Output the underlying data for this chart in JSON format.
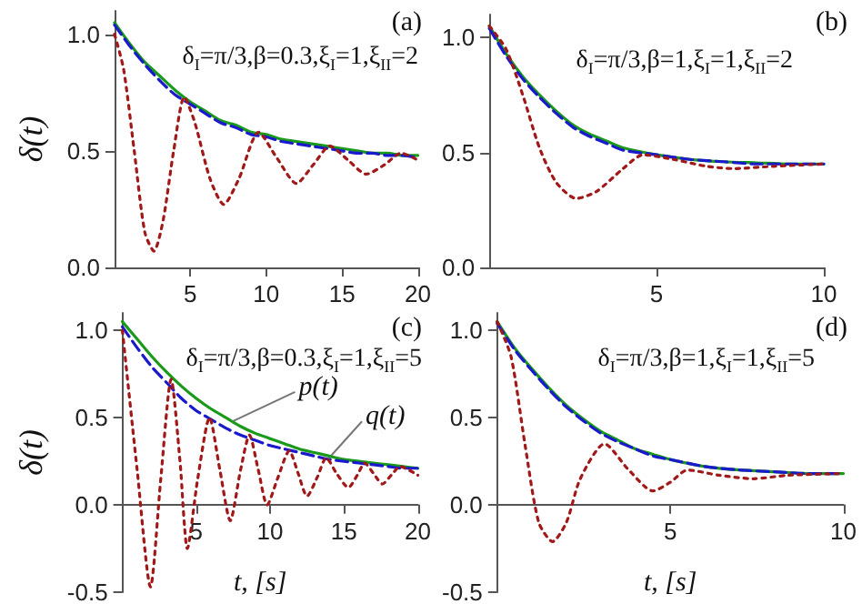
{
  "chart_data": [
    {
      "type": "line",
      "title": "(a)",
      "subtitle": "δ$_{I}$=π/3,β=0.3,ξ$_{I}$=1,ξ$_{II}$=2",
      "ylabel": "δ(t)",
      "xlim": [
        0,
        20
      ],
      "xticks": [
        5,
        10,
        15,
        20
      ],
      "ylim": [
        0,
        1.1
      ],
      "yticks": [
        {
          "value": 0,
          "label": "0.0"
        },
        {
          "value": 0.5,
          "label": "0.5"
        },
        {
          "value": 1,
          "label": "1.0"
        }
      ],
      "series": [
        {
          "color": "#1a9a1a",
          "line_style": "solid",
          "x": [
            0,
            1,
            2,
            3,
            4,
            5,
            6,
            7,
            8,
            9,
            10,
            11,
            12,
            13,
            14,
            15,
            16,
            17,
            18,
            19,
            20
          ],
          "values": [
            1.05,
            0.96,
            0.88,
            0.82,
            0.76,
            0.71,
            0.67,
            0.63,
            0.61,
            0.58,
            0.57,
            0.55,
            0.54,
            0.53,
            0.52,
            0.51,
            0.5,
            0.49,
            0.49,
            0.48,
            0.48
          ]
        },
        {
          "color": "#1a1acc",
          "line_style": "dashed",
          "x": [
            0,
            1,
            2,
            3,
            4,
            5,
            6,
            7,
            8,
            9,
            10,
            11,
            12,
            13,
            14,
            15,
            16,
            17,
            18,
            19,
            20
          ],
          "values": [
            1.04,
            0.95,
            0.87,
            0.8,
            0.74,
            0.7,
            0.66,
            0.62,
            0.6,
            0.57,
            0.56,
            0.54,
            0.53,
            0.52,
            0.51,
            0.5,
            0.49,
            0.49,
            0.48,
            0.48,
            0.47
          ]
        },
        {
          "color": "#a01818",
          "line_style": "dotted",
          "x": [
            0,
            0.6,
            1.3,
            2,
            2.6,
            3.2,
            3.9,
            4.6,
            5.3,
            6.3,
            7.2,
            8.2,
            9.5,
            10.7,
            12,
            13.1,
            14.2,
            15.4,
            16.6,
            17.8,
            18.9,
            20
          ],
          "values": [
            1.0,
            0.85,
            0.5,
            0.15,
            0.07,
            0.2,
            0.5,
            0.73,
            0.62,
            0.38,
            0.27,
            0.38,
            0.58,
            0.47,
            0.36,
            0.44,
            0.52,
            0.46,
            0.4,
            0.44,
            0.49,
            0.46
          ]
        }
      ]
    },
    {
      "type": "line",
      "title": "(b)",
      "subtitle": "δ$_{I}$=π/3,β=1,ξ$_{I}$=1,ξ$_{II}$=2",
      "xlim": [
        0,
        10
      ],
      "xticks": [
        5,
        10
      ],
      "ylim": [
        0,
        1.1
      ],
      "yticks": [
        {
          "value": 0,
          "label": "0.0"
        },
        {
          "value": 0.5,
          "label": "0.5"
        },
        {
          "value": 1,
          "label": "1.0"
        }
      ],
      "series": [
        {
          "color": "#1a9a1a",
          "line_style": "solid",
          "x": [
            0,
            0.5,
            1,
            1.5,
            2,
            2.5,
            3,
            3.5,
            4,
            5,
            6,
            7,
            8,
            9,
            10
          ],
          "values": [
            1.05,
            0.93,
            0.83,
            0.75,
            0.68,
            0.62,
            0.58,
            0.55,
            0.52,
            0.49,
            0.47,
            0.46,
            0.455,
            0.45,
            0.45
          ]
        },
        {
          "color": "#1a1acc",
          "line_style": "dashed",
          "x": [
            0,
            0.5,
            1,
            1.5,
            2,
            2.5,
            3,
            3.5,
            4,
            5,
            6,
            7,
            8,
            9,
            10
          ],
          "values": [
            1.04,
            0.92,
            0.82,
            0.74,
            0.67,
            0.61,
            0.57,
            0.54,
            0.51,
            0.49,
            0.47,
            0.46,
            0.45,
            0.45,
            0.45
          ]
        },
        {
          "color": "#a01818",
          "line_style": "dotted",
          "x": [
            0,
            0.5,
            1,
            1.5,
            2,
            2.6,
            3.2,
            4,
            4.6,
            5.5,
            6.5,
            7.3,
            8.5,
            10
          ],
          "values": [
            1.05,
            0.95,
            0.75,
            0.52,
            0.37,
            0.3,
            0.33,
            0.43,
            0.49,
            0.47,
            0.44,
            0.43,
            0.44,
            0.45
          ]
        }
      ]
    },
    {
      "type": "line",
      "title": "(c)",
      "subtitle": "δ$_{I}$=π/3,β=0.3,ξ$_{I}$=1,ξ$_{II}$=5",
      "ylabel": "δ(t)",
      "xlabel": "t, [s]",
      "xlim": [
        0,
        20
      ],
      "xticks": [
        5,
        10,
        15,
        20
      ],
      "ylim": [
        -0.5,
        1.1
      ],
      "yticks": [
        {
          "value": -0.5,
          "label": "-0.5"
        },
        {
          "value": 0,
          "label": "0.0"
        },
        {
          "value": 0.5,
          "label": "0.5"
        },
        {
          "value": 1,
          "label": "1.0"
        }
      ],
      "annotations": [
        {
          "text": "p(t)",
          "x": 7.5,
          "y": 0.48
        },
        {
          "text": "q(t)",
          "x": 14,
          "y": 0.27
        }
      ],
      "series": [
        {
          "color": "#1a9a1a",
          "line_style": "solid",
          "x": [
            0,
            1,
            2,
            3,
            4,
            5,
            6,
            7,
            8,
            9,
            10,
            11,
            12,
            13,
            14,
            15,
            16,
            17,
            18,
            19,
            20
          ],
          "values": [
            1.05,
            0.95,
            0.85,
            0.76,
            0.68,
            0.61,
            0.55,
            0.5,
            0.45,
            0.41,
            0.38,
            0.35,
            0.32,
            0.3,
            0.28,
            0.26,
            0.25,
            0.24,
            0.23,
            0.22,
            0.21
          ]
        },
        {
          "color": "#1a1acc",
          "line_style": "dashed",
          "x": [
            0,
            1,
            2,
            3,
            4,
            5,
            6,
            7,
            8,
            9,
            10,
            11,
            12,
            13,
            14,
            15,
            16,
            17,
            18,
            19,
            20
          ],
          "values": [
            1.02,
            0.9,
            0.79,
            0.7,
            0.61,
            0.54,
            0.49,
            0.44,
            0.4,
            0.37,
            0.34,
            0.32,
            0.3,
            0.28,
            0.26,
            0.25,
            0.24,
            0.23,
            0.22,
            0.21,
            0.21
          ]
        },
        {
          "color": "#a01818",
          "line_style": "dotted",
          "x": [
            0,
            1,
            1.9,
            2.6,
            3.3,
            3.9,
            4.4,
            5.1,
            5.9,
            6.6,
            7.3,
            8,
            8.6,
            9.2,
            9.8,
            10.5,
            11.3,
            11.9,
            12.5,
            13.2,
            13.8,
            14.5,
            15.3,
            15.9,
            16.4,
            17,
            17.6,
            18.2,
            18.8,
            20
          ],
          "values": [
            1.0,
            0.2,
            -0.47,
            0.15,
            0.72,
            0.25,
            -0.25,
            0.15,
            0.5,
            0.2,
            -0.09,
            0.2,
            0.4,
            0.2,
            0.0,
            0.15,
            0.31,
            0.18,
            0.05,
            0.16,
            0.27,
            0.18,
            0.1,
            0.17,
            0.24,
            0.18,
            0.12,
            0.17,
            0.22,
            0.17
          ]
        }
      ]
    },
    {
      "type": "line",
      "title": "(d)",
      "subtitle": "δ$_{I}$=π/3,β=1,ξ$_{I}$=1,ξ$_{II}$=5",
      "xlabel": "t, [s]",
      "xlim": [
        0,
        10
      ],
      "xticks": [
        5,
        10
      ],
      "ylim": [
        -0.5,
        1.1
      ],
      "yticks": [
        {
          "value": -0.5,
          "label": "-0.5"
        },
        {
          "value": 0,
          "label": "0.0"
        },
        {
          "value": 0.5,
          "label": "0.5"
        },
        {
          "value": 1,
          "label": "1.0"
        }
      ],
      "series": [
        {
          "color": "#1a9a1a",
          "line_style": "solid",
          "x": [
            0,
            0.5,
            1,
            1.5,
            2,
            2.5,
            3,
            3.5,
            4,
            4.5,
            5,
            6,
            7,
            8,
            9,
            10
          ],
          "values": [
            1.05,
            0.9,
            0.78,
            0.67,
            0.57,
            0.49,
            0.42,
            0.37,
            0.32,
            0.29,
            0.26,
            0.22,
            0.2,
            0.19,
            0.18,
            0.18
          ]
        },
        {
          "color": "#1a1acc",
          "line_style": "dashed",
          "x": [
            0,
            0.5,
            1,
            1.5,
            2,
            2.5,
            3,
            3.5,
            4,
            4.5,
            5,
            6,
            7,
            8,
            9,
            10
          ],
          "values": [
            1.04,
            0.89,
            0.77,
            0.66,
            0.56,
            0.48,
            0.41,
            0.36,
            0.32,
            0.28,
            0.26,
            0.22,
            0.2,
            0.19,
            0.18,
            0.18
          ]
        },
        {
          "color": "#a01818",
          "line_style": "dotted",
          "x": [
            0,
            0.4,
            0.8,
            1.2,
            1.6,
            2,
            2.4,
            3.1,
            3.8,
            4.5,
            5,
            5.5,
            6.4,
            7.4,
            8.4,
            10
          ],
          "values": [
            1.05,
            0.85,
            0.35,
            -0.1,
            -0.21,
            -0.1,
            0.15,
            0.35,
            0.2,
            0.08,
            0.13,
            0.2,
            0.17,
            0.15,
            0.17,
            0.18
          ]
        }
      ]
    }
  ]
}
